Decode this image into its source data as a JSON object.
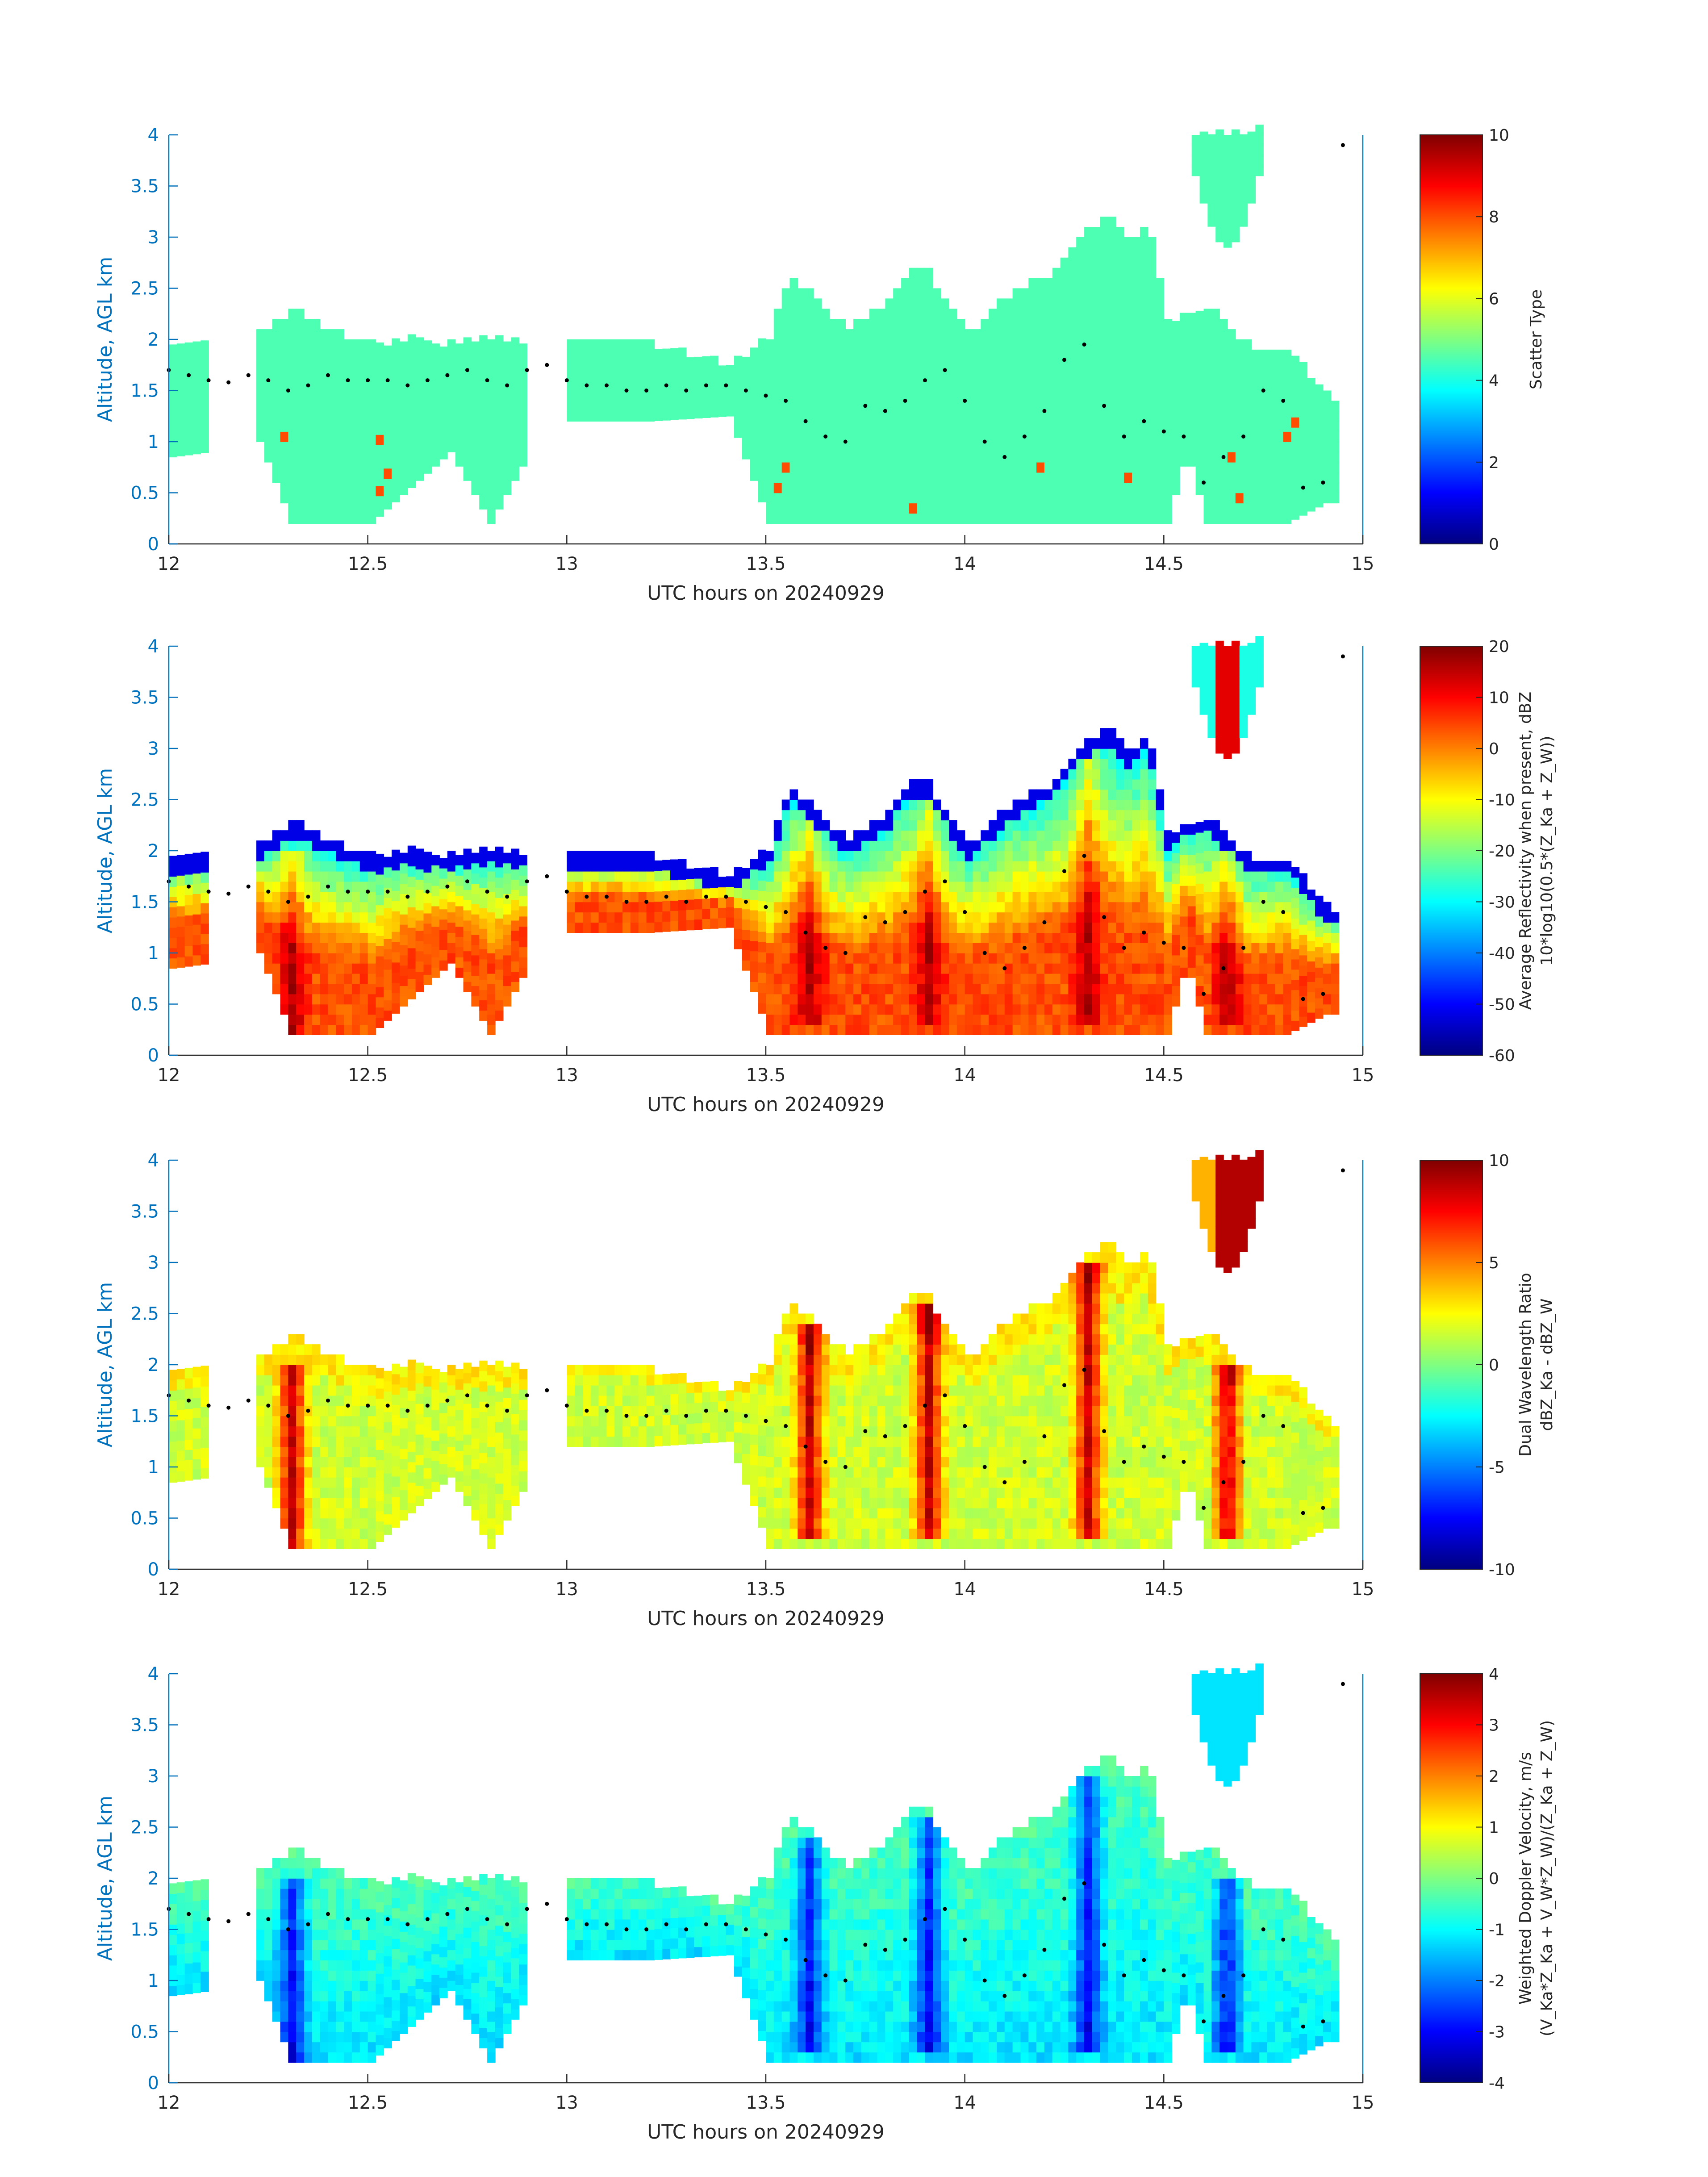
{
  "colors": {
    "axis_y": "#0072BD",
    "axis_x": "#262626",
    "marker": "#000000",
    "colormap": "jet"
  },
  "chart_data": [
    {
      "type": "heatmap",
      "panel": "scatter-type",
      "xlabel": "UTC hours on 20240929",
      "ylabel": "Altitude, AGL km",
      "xlim": [
        12,
        15
      ],
      "ylim": [
        0,
        4
      ],
      "xticks": [
        "12",
        "12.5",
        "13",
        "13.5",
        "14",
        "14.5",
        "15"
      ],
      "yticks": [
        "0",
        "0.5",
        "1",
        "1.5",
        "2",
        "2.5",
        "3",
        "3.5",
        "4"
      ],
      "colorbar": {
        "lines": [
          "Scatter Type"
        ],
        "clim": [
          0,
          10
        ],
        "ticks": [
          "0",
          "2",
          "4",
          "6",
          "8",
          "10"
        ]
      }
    },
    {
      "type": "heatmap",
      "panel": "reflectivity",
      "xlabel": "UTC hours on 20240929",
      "ylabel": "Altitude, AGL km",
      "xlim": [
        12,
        15
      ],
      "ylim": [
        0,
        4
      ],
      "xticks": [
        "12",
        "12.5",
        "13",
        "13.5",
        "14",
        "14.5",
        "15"
      ],
      "yticks": [
        "0",
        "0.5",
        "1",
        "1.5",
        "2",
        "2.5",
        "3",
        "3.5",
        "4"
      ],
      "colorbar": {
        "lines": [
          "Average Reflectivity when present, dBZ",
          "10*log10(0.5*(Z_Ka + Z_W))"
        ],
        "clim": [
          -60,
          20
        ],
        "ticks": [
          "-60",
          "-50",
          "-40",
          "-30",
          "-20",
          "-10",
          "0",
          "10",
          "20"
        ]
      }
    },
    {
      "type": "heatmap",
      "panel": "dual-wavelength-ratio",
      "xlabel": "UTC hours on 20240929",
      "ylabel": "Altitude, AGL km",
      "xlim": [
        12,
        15
      ],
      "ylim": [
        0,
        4
      ],
      "xticks": [
        "12",
        "12.5",
        "13",
        "13.5",
        "14",
        "14.5",
        "15"
      ],
      "yticks": [
        "0",
        "0.5",
        "1",
        "1.5",
        "2",
        "2.5",
        "3",
        "3.5",
        "4"
      ],
      "colorbar": {
        "lines": [
          "Dual Wavelength Ratio",
          "dBZ_Ka - dBZ_W"
        ],
        "clim": [
          -10,
          10
        ],
        "ticks": [
          "-10",
          "-5",
          "0",
          "5",
          "10"
        ]
      }
    },
    {
      "type": "heatmap",
      "panel": "doppler-velocity",
      "xlabel": "UTC hours on 20240929",
      "ylabel": "Altitude, AGL km",
      "xlim": [
        12,
        15
      ],
      "ylim": [
        0,
        4
      ],
      "xticks": [
        "12",
        "12.5",
        "13",
        "13.5",
        "14",
        "14.5",
        "15"
      ],
      "yticks": [
        "0",
        "0.5",
        "1",
        "1.5",
        "2",
        "2.5",
        "3",
        "3.5",
        "4"
      ],
      "colorbar": {
        "lines": [
          "Weighted Doppler Velocity, m/s",
          "(V_Ka*Z_Ka + V_W*Z_W)/(Z_Ka + Z_W)"
        ],
        "clim": [
          -4,
          4
        ],
        "ticks": [
          "-4",
          "-3",
          "-2",
          "-1",
          "0",
          "1",
          "2",
          "3",
          "4"
        ]
      }
    }
  ],
  "cloud_mask": {
    "note_units": "UTC hours, km AGL",
    "top_profile": [
      [
        12.0,
        1.9
      ],
      [
        12.1,
        1.9
      ],
      [
        12.2,
        1.95
      ],
      [
        12.3,
        2.25
      ],
      [
        12.4,
        2.05
      ],
      [
        12.5,
        1.9
      ],
      [
        12.6,
        1.95
      ],
      [
        12.7,
        1.9
      ],
      [
        12.8,
        2.0
      ],
      [
        12.9,
        1.9
      ],
      [
        12.95,
        1.8
      ],
      [
        13.0,
        1.9
      ],
      [
        13.1,
        1.95
      ],
      [
        13.2,
        1.9
      ],
      [
        13.3,
        1.8
      ],
      [
        13.4,
        1.7
      ],
      [
        13.5,
        2.0
      ],
      [
        13.55,
        2.6
      ],
      [
        13.6,
        2.4
      ],
      [
        13.7,
        2.05
      ],
      [
        13.8,
        2.35
      ],
      [
        13.85,
        2.65
      ],
      [
        13.9,
        2.6
      ],
      [
        14.0,
        2.0
      ],
      [
        14.1,
        2.4
      ],
      [
        14.2,
        2.6
      ],
      [
        14.3,
        3.05
      ],
      [
        14.35,
        3.15
      ],
      [
        14.4,
        2.9
      ],
      [
        14.45,
        3.1
      ],
      [
        14.5,
        2.1
      ],
      [
        14.55,
        2.25
      ],
      [
        14.6,
        2.3
      ],
      [
        14.7,
        1.9
      ],
      [
        14.8,
        1.9
      ],
      [
        14.9,
        1.4
      ]
    ],
    "base_profile": [
      [
        12.0,
        0.85
      ],
      [
        12.1,
        0.9
      ],
      [
        12.2,
        1.2
      ],
      [
        12.3,
        0.2
      ],
      [
        12.5,
        0.2
      ],
      [
        12.7,
        0.9
      ],
      [
        12.8,
        0.2
      ],
      [
        12.9,
        0.9
      ],
      [
        13.0,
        1.2
      ],
      [
        13.2,
        1.2
      ],
      [
        13.4,
        1.25
      ],
      [
        13.5,
        0.2
      ],
      [
        14.5,
        0.2
      ],
      [
        14.55,
        0.9
      ],
      [
        14.6,
        0.2
      ],
      [
        14.8,
        0.2
      ],
      [
        14.9,
        0.4
      ]
    ],
    "gaps": [
      [
        12.09,
        12.21
      ],
      [
        12.89,
        12.99
      ],
      [
        14.93,
        14.99
      ]
    ],
    "upper_cloud": {
      "x": [
        14.57,
        14.73
      ],
      "top": 4.0,
      "base": [
        3.6,
        2.9
      ]
    },
    "hot_cores": [
      [
        12.3,
        0.2,
        2.0
      ],
      [
        13.6,
        0.3,
        2.4
      ],
      [
        13.9,
        0.3,
        2.6
      ],
      [
        14.3,
        0.3,
        3.0
      ],
      [
        14.65,
        0.3,
        2.0
      ]
    ]
  },
  "markers": {
    "note": "black dots tracing the boundary-layer/cloud-base estimate, (UTC hours, km)",
    "points": [
      [
        12.0,
        1.7
      ],
      [
        12.05,
        1.65
      ],
      [
        12.1,
        1.6
      ],
      [
        12.15,
        1.58
      ],
      [
        12.2,
        1.65
      ],
      [
        12.25,
        1.6
      ],
      [
        12.3,
        1.5
      ],
      [
        12.35,
        1.55
      ],
      [
        12.4,
        1.65
      ],
      [
        12.45,
        1.6
      ],
      [
        12.5,
        1.6
      ],
      [
        12.55,
        1.6
      ],
      [
        12.6,
        1.55
      ],
      [
        12.65,
        1.6
      ],
      [
        12.7,
        1.65
      ],
      [
        12.75,
        1.7
      ],
      [
        12.8,
        1.6
      ],
      [
        12.85,
        1.55
      ],
      [
        12.9,
        1.7
      ],
      [
        12.95,
        1.75
      ],
      [
        13.0,
        1.6
      ],
      [
        13.05,
        1.55
      ],
      [
        13.1,
        1.55
      ],
      [
        13.15,
        1.5
      ],
      [
        13.2,
        1.5
      ],
      [
        13.25,
        1.55
      ],
      [
        13.3,
        1.5
      ],
      [
        13.35,
        1.55
      ],
      [
        13.4,
        1.55
      ],
      [
        13.45,
        1.5
      ],
      [
        13.5,
        1.45
      ],
      [
        13.55,
        1.4
      ],
      [
        13.6,
        1.2
      ],
      [
        13.65,
        1.05
      ],
      [
        13.7,
        1.0
      ],
      [
        13.75,
        1.35
      ],
      [
        13.8,
        1.3
      ],
      [
        13.85,
        1.4
      ],
      [
        13.9,
        1.6
      ],
      [
        13.95,
        1.7
      ],
      [
        14.0,
        1.4
      ],
      [
        14.05,
        1.0
      ],
      [
        14.1,
        0.85
      ],
      [
        14.15,
        1.05
      ],
      [
        14.2,
        1.3
      ],
      [
        14.25,
        1.8
      ],
      [
        14.3,
        1.95
      ],
      [
        14.35,
        1.35
      ],
      [
        14.4,
        1.05
      ],
      [
        14.45,
        1.2
      ],
      [
        14.5,
        1.1
      ],
      [
        14.55,
        1.05
      ],
      [
        14.6,
        0.6
      ],
      [
        14.65,
        0.85
      ],
      [
        14.7,
        1.05
      ],
      [
        14.75,
        1.5
      ],
      [
        14.8,
        1.4
      ],
      [
        14.85,
        0.55
      ],
      [
        14.9,
        0.6
      ],
      [
        14.95,
        3.9
      ]
    ]
  }
}
